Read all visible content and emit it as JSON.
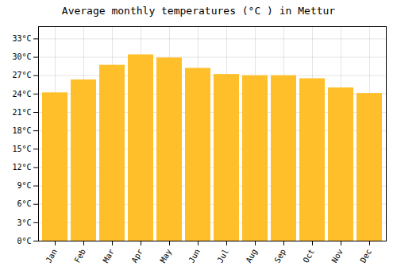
{
  "chart_data": {
    "type": "bar",
    "title": "Average monthly temperatures (°C ) in Mettur",
    "categories": [
      "Jan",
      "Feb",
      "Mar",
      "Apr",
      "May",
      "Jun",
      "Jul",
      "Aug",
      "Sep",
      "Oct",
      "Nov",
      "Dec"
    ],
    "values": [
      24.2,
      26.3,
      28.7,
      30.4,
      29.9,
      28.2,
      27.2,
      27.0,
      27.0,
      26.5,
      25.0,
      24.1
    ],
    "color": "#FFBF2B",
    "ylim": [
      0,
      35
    ],
    "yticks": [
      {
        "value": 0,
        "label": "0°C"
      },
      {
        "value": 3,
        "label": "3°C"
      },
      {
        "value": 6,
        "label": "6°C"
      },
      {
        "value": 9,
        "label": "9°C"
      },
      {
        "value": 12,
        "label": "12°C"
      },
      {
        "value": 15,
        "label": "15°C"
      },
      {
        "value": 18,
        "label": "18°C"
      },
      {
        "value": 21,
        "label": "21°C"
      },
      {
        "value": 24,
        "label": "24°C"
      },
      {
        "value": 27,
        "label": "27°C"
      },
      {
        "value": 30,
        "label": "30°C"
      },
      {
        "value": 33,
        "label": "33°C"
      }
    ],
    "grid": true
  }
}
